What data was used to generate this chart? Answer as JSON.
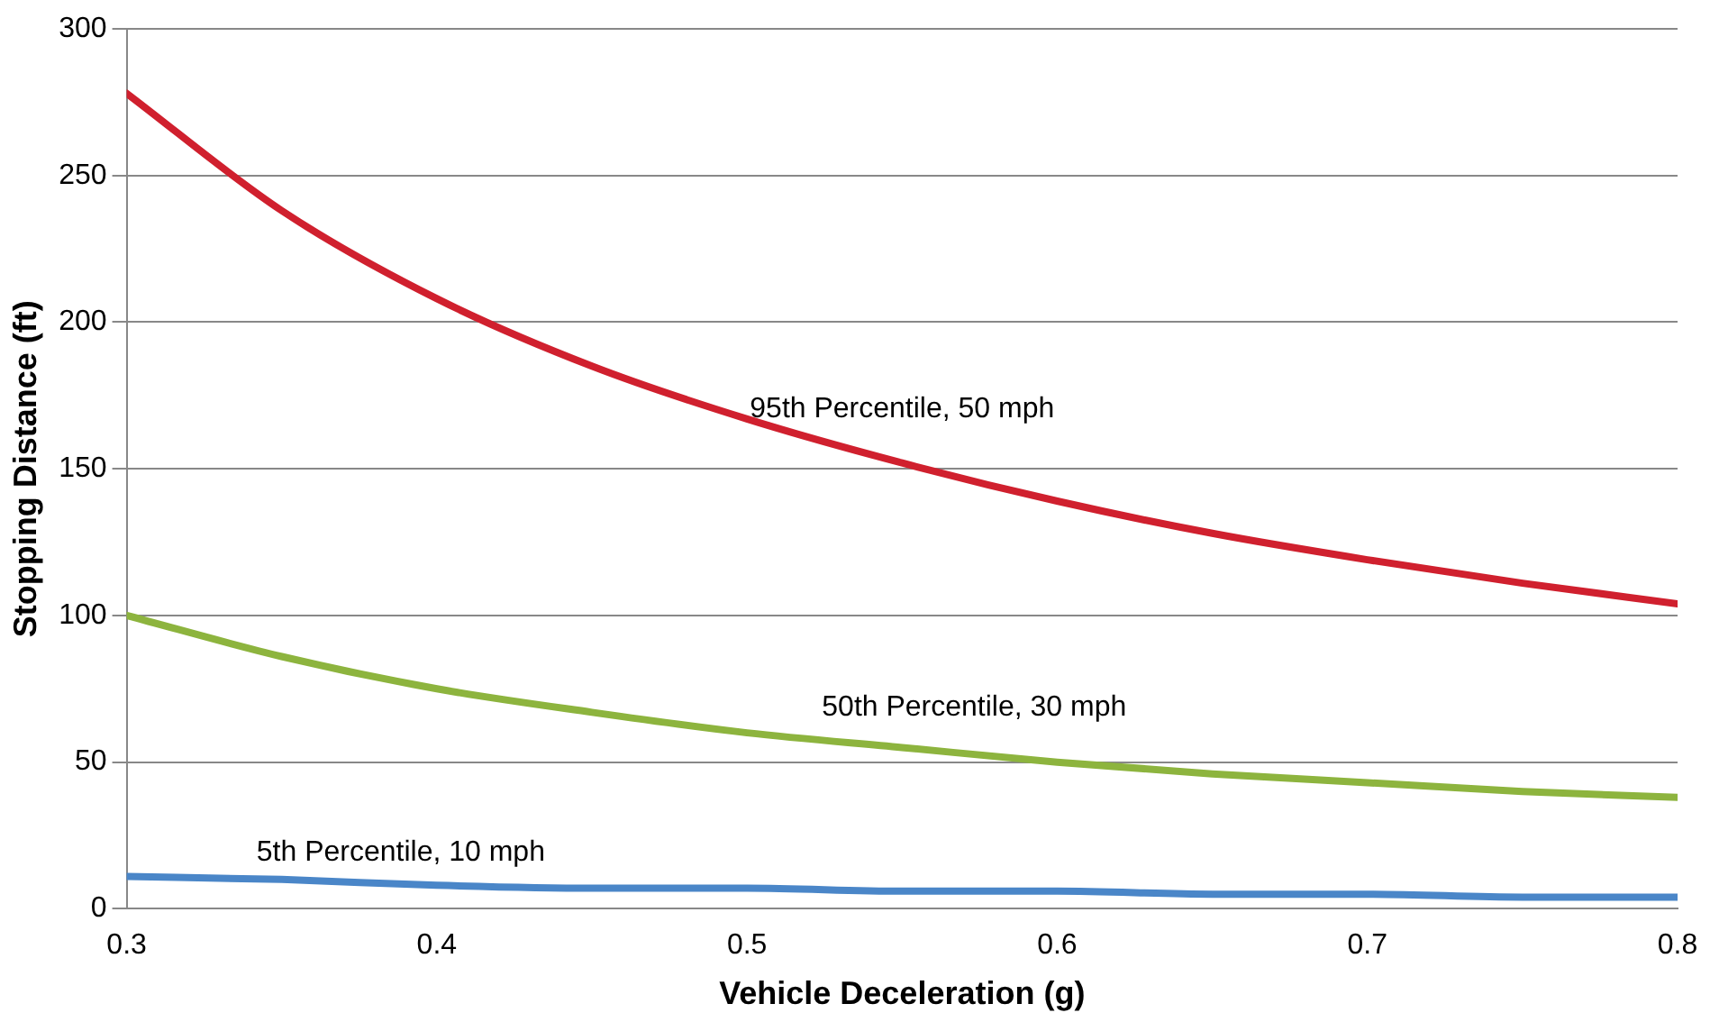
{
  "chart_data": {
    "type": "line",
    "xlabel": "Vehicle Deceleration (g)",
    "ylabel": "Stopping Distance (ft)",
    "x": [
      0.3,
      0.35,
      0.4,
      0.45,
      0.5,
      0.55,
      0.6,
      0.65,
      0.7,
      0.75,
      0.8
    ],
    "series": [
      {
        "name": "95th Percentile, 50 mph",
        "color": "#d0202e",
        "values": [
          278,
          238,
          208,
          185,
          167,
          152,
          139,
          128,
          119,
          111,
          104
        ]
      },
      {
        "name": "50th Percentile, 30 mph",
        "color": "#8db43e",
        "values": [
          100,
          86,
          75,
          67,
          60,
          55,
          50,
          46,
          43,
          40,
          38
        ]
      },
      {
        "name": "5th Percentile, 10 mph",
        "color": "#4a86c8",
        "values": [
          11,
          10,
          8,
          7,
          7,
          6,
          6,
          5,
          5,
          4,
          4
        ]
      }
    ],
    "xlim": [
      0.3,
      0.8
    ],
    "xticks": [
      0.3,
      0.4,
      0.5,
      0.6,
      0.7,
      0.8
    ],
    "ylim": [
      0,
      300
    ],
    "yticks": [
      0,
      50,
      100,
      150,
      200,
      250,
      300
    ],
    "grid": "y",
    "legend": false,
    "marker": "none",
    "line_style": "solid"
  }
}
